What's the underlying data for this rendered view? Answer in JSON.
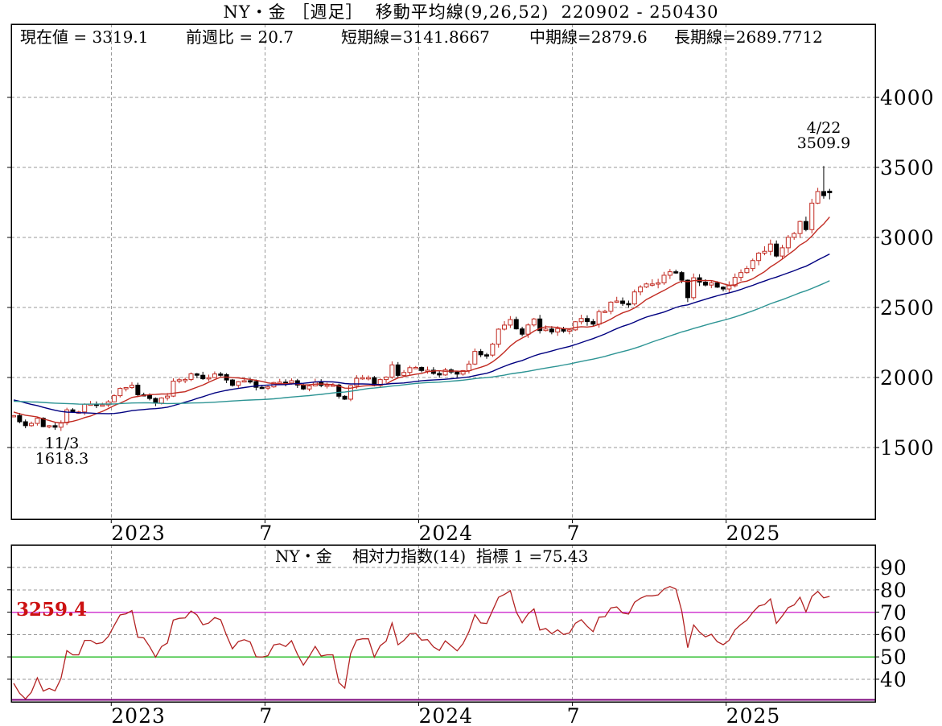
{
  "title": "NY・金 ［週足］  移動平均線(9,26,52)  220902 - 250430",
  "info": {
    "segments": [
      "現在値 = 3319.1",
      "前週比 = 20.7",
      "短期線=3141.8667",
      "中期線=2879.6",
      "長期線=2689.7712"
    ]
  },
  "annotations": {
    "trough": {
      "date": "11/3",
      "value": "1618.3"
    },
    "peak": {
      "date": "4/22",
      "value": "3509.9"
    }
  },
  "rsi_header": "NY・金    相対力指数(14)  指標 1 =75.43",
  "rsi_level_label": "3259.4",
  "colors": {
    "up": "#c22b22",
    "down": "#000000",
    "ma_short": "#c22b22",
    "ma_mid": "#000080",
    "ma_long": "#2d9494",
    "grid": "#999999",
    "border": "#000000",
    "rsi_line": "#b22222",
    "rsi_70_line": "#d23bd2",
    "rsi_50_line": "#2fbf2f",
    "rsi_30_line": "#7a007a",
    "level_label": "#cc1111"
  },
  "chart_data": {
    "type": "candlestick",
    "title": "NY・金 週足 移動平均線(9,26,52)",
    "period": "220902 - 250430",
    "current_value": 3319.1,
    "prev_week_change": 20.7,
    "ma_periods": [
      9,
      26,
      52
    ],
    "ma_current": {
      "short": 3141.8667,
      "mid": 2879.6,
      "long": 2689.7712
    },
    "y_ticks": [
      4000,
      3500,
      3000,
      2500,
      2000,
      1500
    ],
    "ylim": [
      1450,
      4100
    ],
    "x_ticks": [
      {
        "pos": 16.5,
        "label": "2023"
      },
      {
        "pos": 42.5,
        "label": "7"
      },
      {
        "pos": 68.5,
        "label": "2024"
      },
      {
        "pos": 94.5,
        "label": "7"
      },
      {
        "pos": 120.5,
        "label": "2025"
      }
    ],
    "pre_closes": [
      1788,
      1754,
      1751,
      1761,
      1757,
      1796,
      1784,
      1768,
      1785,
      1817,
      1849,
      1863,
      1846,
      1784,
      1783,
      1798,
      1812,
      1832,
      1797,
      1817,
      1832,
      1843,
      1808,
      1899,
      1900,
      1985,
      1929,
      1922,
      1958,
      1944,
      1934,
      1976,
      1932,
      1912,
      1897,
      1884,
      1812,
      1808,
      1842,
      1847,
      1876,
      1830,
      1840,
      1828,
      1801,
      1745,
      1728,
      1762,
      1782,
      1751,
      1762,
      1723
    ],
    "closes": [
      1728,
      1684,
      1656,
      1672,
      1709,
      1649,
      1656,
      1645,
      1677,
      1769,
      1754,
      1754,
      1810,
      1810,
      1800,
      1804,
      1826,
      1870,
      1922,
      1928,
      1945,
      1877,
      1875,
      1850,
      1817,
      1854,
      1867,
      1974,
      1984,
      1986,
      2026,
      2016,
      1991,
      1999,
      2025,
      2020,
      1982,
      1944,
      1970,
      1977,
      1971,
      1930,
      1929,
      1933,
      1964,
      1967,
      1961,
      1977,
      1946,
      1918,
      1940,
      1967,
      1943,
      1946,
      1946,
      1866,
      1845,
      1942,
      1994,
      1999,
      1999,
      1943,
      1985,
      2003,
      2090,
      2015,
      2036,
      2070,
      2072,
      2050,
      2052,
      2029,
      2018,
      2054,
      2039,
      2024,
      2049,
      2096,
      2186,
      2162,
      2160,
      2238,
      2345,
      2374,
      2414,
      2347,
      2309,
      2375,
      2418,
      2335,
      2346,
      2325,
      2349,
      2331,
      2340,
      2398,
      2421,
      2399,
      2381,
      2470,
      2473,
      2538,
      2546,
      2528,
      2525,
      2611,
      2646,
      2668,
      2668,
      2676,
      2730,
      2755,
      2749,
      2695,
      2570,
      2712,
      2681,
      2660,
      2676,
      2645,
      2632,
      2655,
      2715,
      2749,
      2778,
      2835,
      2888,
      2901,
      2953,
      2867,
      2926,
      3001,
      3028,
      3114,
      3056,
      3245,
      3328,
      3298.4,
      3319.1
    ],
    "key_points": [
      {
        "index": 8,
        "low": 1618.3
      },
      {
        "index": 137,
        "high": 3509.9
      },
      {
        "index": 138,
        "open": 3330.6,
        "high": 3347,
        "low": 3272
      }
    ],
    "rsi": {
      "period": 14,
      "current": 75.43,
      "upper_level": 70,
      "mid_level": 50,
      "lower_level": 30,
      "y_ticks": [
        90,
        80,
        70,
        60,
        50,
        40
      ]
    }
  }
}
